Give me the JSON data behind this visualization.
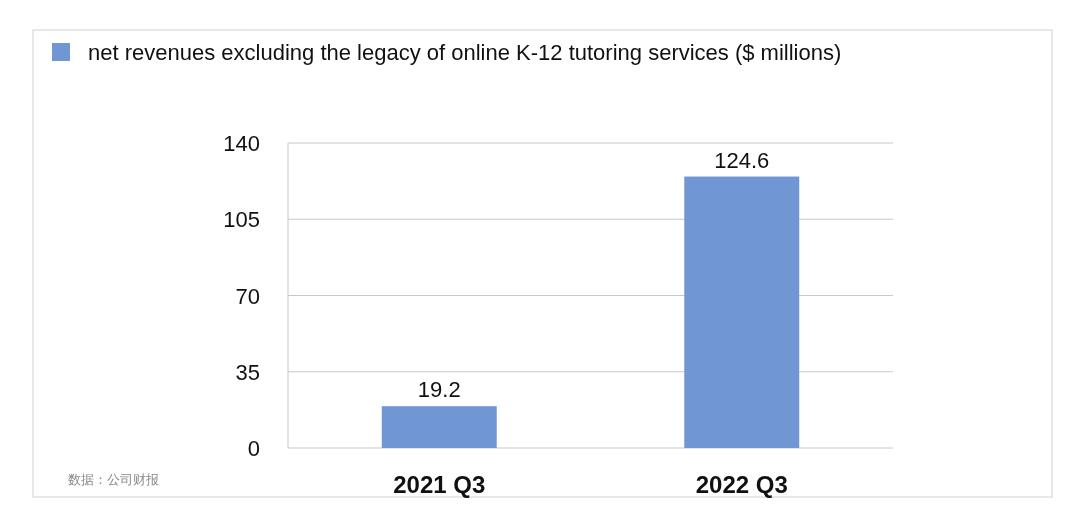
{
  "chart_data": {
    "type": "bar",
    "categories": [
      "2021 Q3",
      "2022 Q3"
    ],
    "series": [
      {
        "name": "net revenues excluding the legacy of online K-12 tutoring services ($ millions)",
        "color": "#7096d4",
        "values": [
          19.2,
          124.6
        ]
      }
    ],
    "ylim": [
      0,
      140
    ],
    "yticks": [
      0,
      35,
      70,
      105,
      140
    ],
    "grid": "y",
    "legend": "top",
    "data_labels": true,
    "annotations": [
      "数据：公司财报"
    ]
  }
}
